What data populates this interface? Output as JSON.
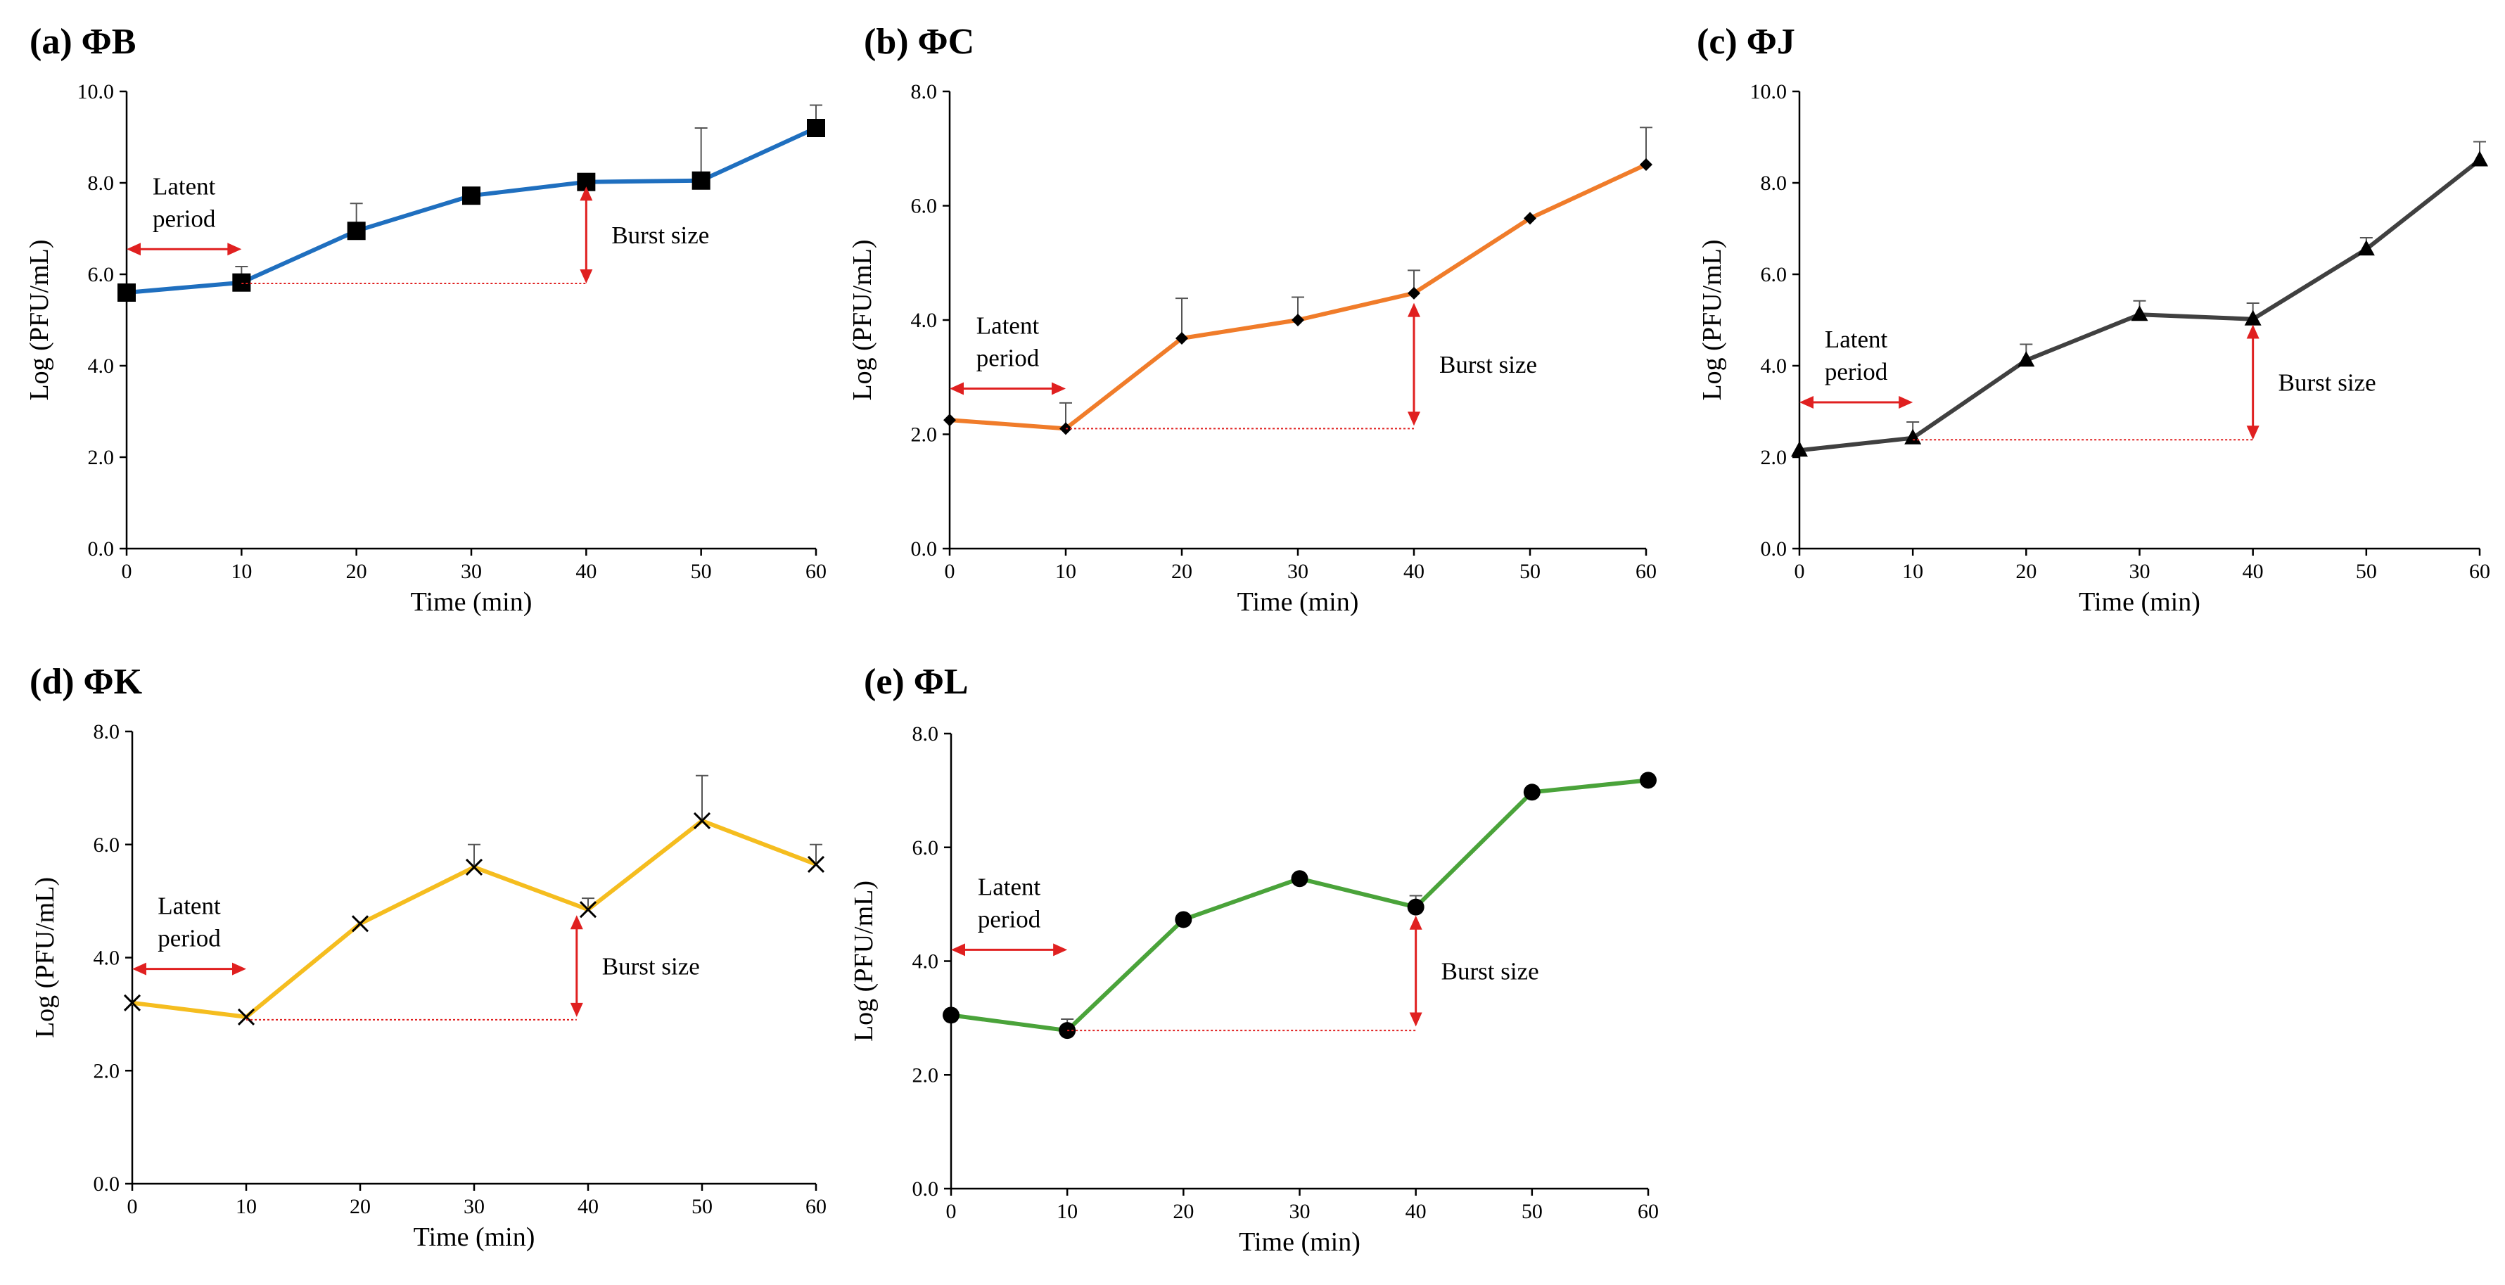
{
  "chart_data": [
    {
      "type": "line",
      "panel": "(a) ΦB",
      "xlabel": "Time (min)",
      "ylabel": "Log (PFU/mL)",
      "xlim": [
        0,
        60
      ],
      "ylim": [
        0,
        10
      ],
      "xticks": [
        0,
        10,
        20,
        30,
        40,
        50,
        60
      ],
      "yticks": [
        0,
        2,
        4,
        6,
        8,
        10
      ],
      "ytick_labels": [
        "0.0",
        "2.0",
        "4.0",
        "6.0",
        "8.0",
        "10.0"
      ],
      "color": "#1f6fbf",
      "marker": "square",
      "x": [
        0,
        10,
        20,
        30,
        40,
        50,
        60
      ],
      "y": [
        5.6,
        5.82,
        6.95,
        7.72,
        8.02,
        8.05,
        9.2
      ],
      "error": [
        0.0,
        0.35,
        0.6,
        0.05,
        0.1,
        1.15,
        0.5
      ],
      "latent": {
        "x0": 0,
        "x1": 10,
        "y": 6.55,
        "label_line1": "Latent",
        "label_line2": "period"
      },
      "burst": {
        "x": 40,
        "y0": 5.8,
        "y1": 7.92,
        "label": "Burst size",
        "baseline_y": 5.8
      }
    },
    {
      "type": "line",
      "panel": "(b) ΦC",
      "xlabel": "Time (min)",
      "ylabel": "Log (PFU/mL)",
      "xlim": [
        0,
        60
      ],
      "ylim": [
        0,
        8
      ],
      "xticks": [
        0,
        10,
        20,
        30,
        40,
        50,
        60
      ],
      "yticks": [
        0,
        2,
        4,
        6,
        8
      ],
      "ytick_labels": [
        "0.0",
        "2.0",
        "4.0",
        "6.0",
        "8.0"
      ],
      "color": "#f07c2a",
      "marker": "diamond",
      "x": [
        0,
        10,
        20,
        30,
        40,
        50,
        60
      ],
      "y": [
        2.25,
        2.1,
        3.68,
        4.0,
        4.47,
        5.78,
        6.72
      ],
      "error": [
        0.0,
        0.45,
        0.7,
        0.4,
        0.4,
        0.0,
        0.65
      ],
      "latent": {
        "x0": 0,
        "x1": 10,
        "y": 2.8,
        "label_line1": "Latent",
        "label_line2": "period"
      },
      "burst": {
        "x": 40,
        "y0": 2.15,
        "y1": 4.3,
        "label": "Burst size",
        "baseline_y": 2.1
      }
    },
    {
      "type": "line",
      "panel": "(c) ΦJ",
      "xlabel": "Time (min)",
      "ylabel": "Log (PFU/mL)",
      "xlim": [
        0,
        60
      ],
      "ylim": [
        0,
        10
      ],
      "xticks": [
        0,
        10,
        20,
        30,
        40,
        50,
        60
      ],
      "yticks": [
        0,
        2,
        4,
        6,
        8,
        10
      ],
      "ytick_labels": [
        "0.0",
        "2.0",
        "4.0",
        "6.0",
        "8.0",
        "10.0"
      ],
      "color": "#404040",
      "marker": "triangle",
      "x": [
        0,
        10,
        20,
        30,
        40,
        50,
        60
      ],
      "y": [
        2.15,
        2.42,
        4.12,
        5.12,
        5.02,
        6.55,
        8.5
      ],
      "error": [
        0.0,
        0.35,
        0.35,
        0.3,
        0.35,
        0.25,
        0.4
      ],
      "latent": {
        "x0": 0,
        "x1": 10,
        "y": 3.2,
        "label_line1": "Latent",
        "label_line2": "period"
      },
      "burst": {
        "x": 40,
        "y0": 2.38,
        "y1": 4.9,
        "label": "Burst size",
        "baseline_y": 2.38
      }
    },
    {
      "type": "line",
      "panel": "(d) ΦK",
      "xlabel": "Time (min)",
      "ylabel": "Log (PFU/mL)",
      "xlim": [
        0,
        60
      ],
      "ylim": [
        0,
        8
      ],
      "xticks": [
        0,
        10,
        20,
        30,
        40,
        50,
        60
      ],
      "yticks": [
        0,
        2,
        4,
        6,
        8
      ],
      "ytick_labels": [
        "0.0",
        "2.0",
        "4.0",
        "6.0",
        "8.0"
      ],
      "color": "#f5bd1f",
      "marker": "x",
      "x": [
        0,
        10,
        20,
        30,
        40,
        50,
        60
      ],
      "y": [
        3.2,
        2.95,
        4.6,
        5.6,
        4.85,
        6.42,
        5.65
      ],
      "error": [
        0.0,
        0.0,
        0.0,
        0.4,
        0.2,
        0.8,
        0.35
      ],
      "latent": {
        "x0": 0,
        "x1": 10,
        "y": 3.8,
        "label_line1": "Latent",
        "label_line2": "period"
      },
      "burst": {
        "x": 39,
        "y0": 2.95,
        "y1": 4.75,
        "label": "Burst size",
        "baseline_y": 2.9
      }
    },
    {
      "type": "line",
      "panel": "(e) ΦL",
      "xlabel": "Time (min)",
      "ylabel": "Log (PFU/mL)",
      "xlim": [
        0,
        60
      ],
      "ylim": [
        0,
        8
      ],
      "xticks": [
        0,
        10,
        20,
        30,
        40,
        50,
        60
      ],
      "yticks": [
        0,
        2,
        4,
        6,
        8
      ],
      "ytick_labels": [
        "0.0",
        "2.0",
        "4.0",
        "6.0",
        "8.0"
      ],
      "color": "#4aa33a",
      "marker": "circle",
      "x": [
        0,
        10,
        20,
        30,
        40,
        50,
        60
      ],
      "y": [
        3.05,
        2.78,
        4.73,
        5.45,
        4.95,
        6.97,
        7.18
      ],
      "error": [
        0.0,
        0.2,
        0.0,
        0.0,
        0.2,
        0.0,
        0.0
      ],
      "latent": {
        "x0": 0,
        "x1": 10,
        "y": 4.2,
        "label_line1": "Latent",
        "label_line2": "period"
      },
      "burst": {
        "x": 40,
        "y0": 2.85,
        "y1": 4.8,
        "label": "Burst size",
        "baseline_y": 2.78
      }
    }
  ]
}
